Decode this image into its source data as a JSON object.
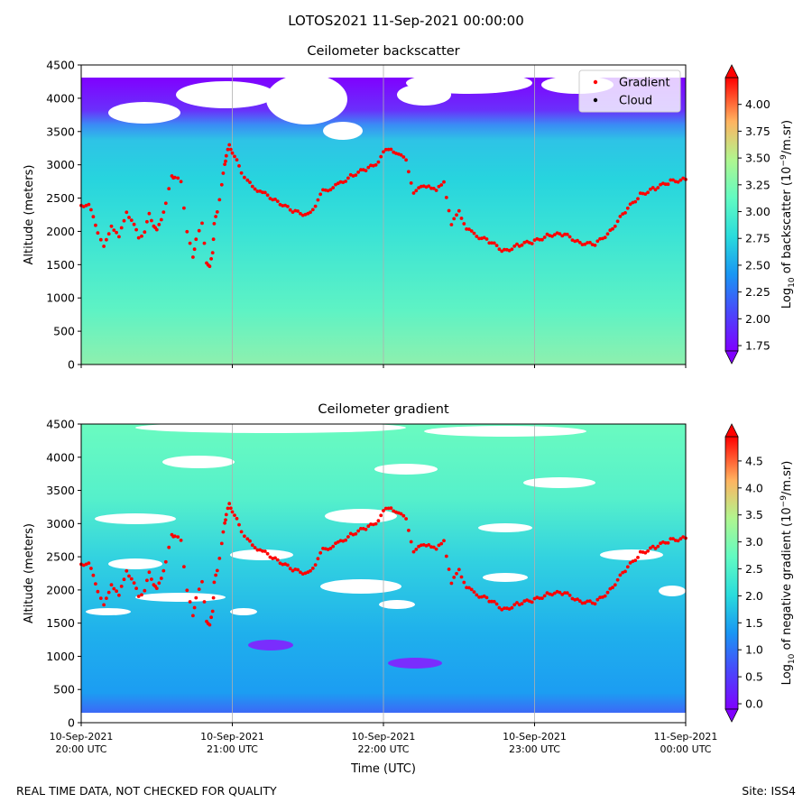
{
  "figure": {
    "suptitle": "LOTOS2021 11-Sep-2021 00:00:00",
    "footer_left": "REAL TIME DATA, NOT CHECKED FOR QUALITY",
    "footer_right": "Site: ISS4",
    "xlabel": "Time (UTC)"
  },
  "chart_data": [
    {
      "type": "heatmap",
      "title": "Ceilometer backscatter",
      "ylabel": "Altitude (meters)",
      "ylim": [
        0,
        4500
      ],
      "yticks": [
        0,
        500,
        1000,
        1500,
        2000,
        2500,
        3000,
        3500,
        4000,
        4500
      ],
      "xticks": [
        {
          "date": "10-Sep-2021",
          "time": "20:00 UTC"
        },
        {
          "date": "10-Sep-2021",
          "time": "21:00 UTC"
        },
        {
          "date": "10-Sep-2021",
          "time": "22:00 UTC"
        },
        {
          "date": "10-Sep-2021",
          "time": "23:00 UTC"
        },
        {
          "date": "11-Sep-2021",
          "time": "00:00 UTC"
        }
      ],
      "grid": "vertical",
      "colorbar": {
        "label_prefix": "Log",
        "label_sub": "10",
        "label_mid": " of backscatter (10",
        "label_sup": "−9",
        "label_suffix": "/m.sr)",
        "ticks": [
          "1.75",
          "2.00",
          "2.25",
          "2.50",
          "2.75",
          "3.00",
          "3.25",
          "3.50",
          "3.75",
          "4.00"
        ],
        "min": 1.7,
        "max": 4.25
      },
      "legend": {
        "position": "top-right",
        "entries": [
          {
            "label": "Gradient",
            "color": "#ff0000"
          },
          {
            "label": "Cloud",
            "color": "#000000"
          }
        ]
      },
      "field_description": "values around 2.5-2.8 below 3500 m, about 2.0 (purple) near 3700-4300 m, missing data above",
      "gradient_color": "#ff0000"
    },
    {
      "type": "heatmap",
      "title": "Ceilometer gradient",
      "ylabel": "Altitude (meters)",
      "ylim": [
        0,
        4500
      ],
      "yticks": [
        0,
        500,
        1000,
        1500,
        2000,
        2500,
        3000,
        3500,
        4000,
        4500
      ],
      "xticks": [
        {
          "date": "10-Sep-2021",
          "time": "20:00 UTC"
        },
        {
          "date": "10-Sep-2021",
          "time": "21:00 UTC"
        },
        {
          "date": "10-Sep-2021",
          "time": "22:00 UTC"
        },
        {
          "date": "10-Sep-2021",
          "time": "23:00 UTC"
        },
        {
          "date": "11-Sep-2021",
          "time": "00:00 UTC"
        }
      ],
      "grid": "vertical",
      "colorbar": {
        "label_prefix": "Log",
        "label_sub": "10",
        "label_mid": " of negative gradient (10",
        "label_sup": "−9",
        "label_suffix": "/m.sr)",
        "ticks": [
          "0.0",
          "0.5",
          "1.0",
          "1.5",
          "2.0",
          "2.5",
          "3.0",
          "3.5",
          "4.0",
          "4.5"
        ],
        "min": -0.1,
        "max": 4.95
      },
      "field_description": "values around 1.0-2.0 with many white gaps",
      "gradient_color": "#ff0000"
    }
  ],
  "gradient_series": {
    "name": "Gradient",
    "x_hours": [
      0.0,
      0.05,
      0.08,
      0.11,
      0.15,
      0.2,
      0.25,
      0.3,
      0.35,
      0.38,
      0.42,
      0.45,
      0.48,
      0.5,
      0.53,
      0.56,
      0.6,
      0.62,
      0.66,
      0.7,
      0.74,
      0.76,
      0.8,
      0.83,
      0.85,
      0.87,
      0.88,
      0.9,
      0.93,
      0.95,
      0.96,
      0.98,
      1.0,
      1.03,
      1.06,
      1.1,
      1.15,
      1.2,
      1.3,
      1.4,
      1.5,
      1.55,
      1.6,
      1.65,
      1.7,
      1.8,
      1.9,
      1.95,
      2.0,
      2.05,
      2.1,
      2.15,
      2.2,
      2.25,
      2.3,
      2.35,
      2.4,
      2.45,
      2.5,
      2.55,
      2.6,
      2.7,
      2.8,
      2.9,
      3.0,
      3.1,
      3.2,
      3.3,
      3.4,
      3.5,
      3.6,
      3.7,
      3.8,
      3.9,
      4.0
    ],
    "y_m": [
      2380,
      2420,
      2200,
      2000,
      1750,
      2100,
      1900,
      2300,
      2100,
      1900,
      2000,
      2250,
      2100,
      2000,
      2200,
      2400,
      2850,
      2800,
      2750,
      2000,
      1600,
      1900,
      2100,
      1550,
      1450,
      1700,
      2100,
      2300,
      2700,
      3000,
      3150,
      3280,
      3200,
      3050,
      2900,
      2750,
      2650,
      2580,
      2450,
      2300,
      2250,
      2400,
      2600,
      2650,
      2700,
      2850,
      2950,
      3000,
      3200,
      3220,
      3180,
      3050,
      2600,
      2650,
      2700,
      2600,
      2750,
      2100,
      2300,
      2050,
      1950,
      1850,
      1700,
      1800,
      1850,
      1950,
      1950,
      1830,
      1800,
      2000,
      2300,
      2550,
      2650,
      2750,
      2780
    ]
  }
}
